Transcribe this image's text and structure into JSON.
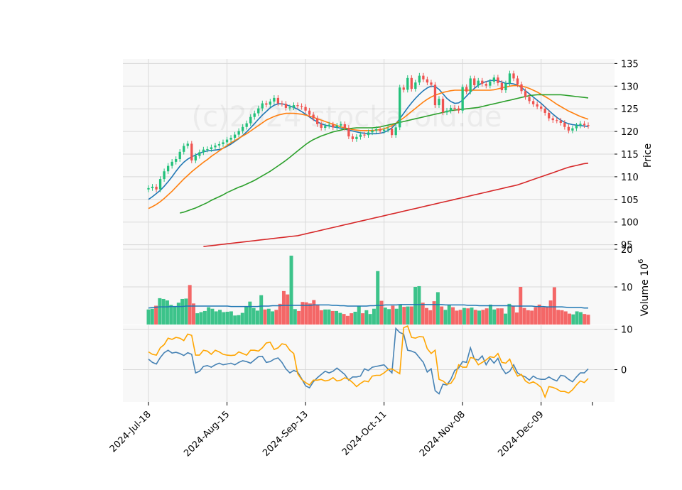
{
  "watermark": "(c)2024 stockaroid.de",
  "colors": {
    "up": "#26a69a",
    "up_candle": "#22c07a",
    "down": "#ef5350",
    "ma1": "#1f77b4",
    "ma2": "#ff7f0e",
    "ma3": "#2ca02c",
    "ma4": "#d62728",
    "vol_avg": "#1f77b4",
    "osc1": "#4682b4",
    "osc2": "#ffa500",
    "panel_bg": "#f8f8f8",
    "grid": "#d9d9d9"
  },
  "chart_data": {
    "type": "candlestick",
    "x_tick_labels": [
      "2024-Jul-18",
      "2024-Aug-15",
      "2024-Sep-13",
      "2024-Oct-11",
      "2024-Nov-08",
      "2024-Dec-09"
    ],
    "x_tick_index": [
      0,
      20,
      40,
      60,
      80,
      100
    ],
    "price_panel": {
      "ylabel": "Price",
      "yticks": [
        95,
        100,
        105,
        110,
        115,
        120,
        125,
        130,
        135
      ],
      "ylim": [
        94,
        136
      ],
      "close": [
        107.5,
        107.8,
        107.2,
        109.5,
        111.2,
        112.4,
        113.3,
        113.9,
        115.5,
        116.8,
        117.3,
        113.6,
        114.6,
        115.4,
        116.0,
        116.1,
        116.5,
        116.9,
        117.2,
        117.6,
        118.2,
        118.6,
        119.3,
        120.1,
        121.0,
        121.8,
        123.2,
        124.0,
        125.1,
        126.2,
        125.9,
        126.6,
        127.4,
        126.2,
        126.1,
        125.2,
        125.3,
        125.8,
        125.6,
        125.4,
        124.6,
        123.7,
        122.9,
        121.6,
        120.8,
        121.2,
        121.5,
        120.9,
        121.3,
        121.6,
        120.8,
        118.9,
        118.3,
        118.8,
        119.3,
        119.2,
        119.8,
        120.2,
        120.5,
        120.1,
        120.4,
        120.6,
        119.2,
        120.9,
        129.7,
        129.2,
        131.8,
        129.4,
        130.8,
        132.3,
        131.5,
        130.8,
        130.3,
        125.8,
        127.2,
        124.2,
        124.6,
        125.2,
        125.1,
        124.6,
        129.8,
        128.8,
        131.7,
        130.2,
        131.2,
        130.5,
        130.1,
        131.0,
        131.9,
        130.7,
        129.1,
        130.6,
        132.8,
        131.7,
        130.4,
        128.9,
        127.6,
        126.7,
        126.0,
        125.5,
        125.0,
        124.1,
        122.9,
        122.5,
        122.4,
        121.9,
        121.0,
        120.2,
        120.7,
        121.3,
        121.7,
        121.4,
        121.2
      ],
      "moving_averages": [
        {
          "name": "MA fast",
          "values": [
            105.0,
            105.6,
            106.3,
            107.0,
            107.9,
            108.9,
            110.0,
            111.2,
            112.3,
            113.2,
            113.9,
            114.4,
            114.8,
            115.2,
            115.5,
            115.7,
            115.8,
            115.9,
            116.0,
            116.3,
            116.7,
            117.2,
            117.8,
            118.4,
            119.1,
            119.9,
            120.8,
            121.7,
            122.7,
            123.6,
            124.4,
            125.2,
            125.8,
            126.1,
            126.1,
            125.9,
            125.6,
            125.3,
            124.9,
            124.4,
            123.8,
            123.2,
            122.6,
            122.1,
            121.7,
            121.4,
            121.2,
            121.0,
            120.9,
            120.7,
            120.5,
            120.3,
            120.1,
            119.9,
            119.7,
            119.6,
            119.5,
            119.5,
            119.5,
            119.6,
            119.8,
            120.2,
            120.8,
            121.7,
            122.8,
            124.0,
            125.2,
            126.3,
            127.3,
            128.2,
            129.0,
            129.6,
            130.0,
            129.9,
            129.3,
            128.3,
            127.3,
            126.6,
            126.2,
            126.3,
            126.9,
            127.8,
            128.7,
            129.5,
            130.2,
            130.7,
            131.0,
            131.2,
            131.3,
            131.2,
            130.9,
            130.6,
            130.6,
            130.5,
            130.2,
            129.7,
            129.0,
            128.3,
            127.6,
            126.9,
            126.2,
            125.4,
            124.6,
            123.8,
            123.1,
            122.5,
            122.0,
            121.7,
            121.5,
            121.4,
            121.3,
            121.2,
            121.1
          ]
        },
        {
          "name": "MA medium",
          "values": [
            103.0,
            103.4,
            103.9,
            104.5,
            105.2,
            106.0,
            106.8,
            107.7,
            108.6,
            109.5,
            110.3,
            111.1,
            111.8,
            112.5,
            113.2,
            113.8,
            114.5,
            115.1,
            115.7,
            116.3,
            116.9,
            117.5,
            118.0,
            118.5,
            119.0,
            119.5,
            120.1,
            120.7,
            121.3,
            121.9,
            122.5,
            122.9,
            123.3,
            123.6,
            123.8,
            124.0,
            124.0,
            124.0,
            123.9,
            123.8,
            123.6,
            123.4,
            123.1,
            122.8,
            122.5,
            122.2,
            121.9,
            121.6,
            121.3,
            121.0,
            120.8,
            120.6,
            120.4,
            120.3,
            120.2,
            120.2,
            120.2,
            120.2,
            120.3,
            120.4,
            120.6,
            120.9,
            121.3,
            121.8,
            122.4,
            123.0,
            123.7,
            124.4,
            125.1,
            125.8,
            126.5,
            127.1,
            127.6,
            128.0,
            128.3,
            128.6,
            128.8,
            129.0,
            129.1,
            129.1,
            129.1,
            129.1,
            129.1,
            129.1,
            129.1,
            129.1,
            129.1,
            129.1,
            129.2,
            129.4,
            129.6,
            129.8,
            130.0,
            130.1,
            130.1,
            130.0,
            129.8,
            129.5,
            129.1,
            128.7,
            128.2,
            127.7,
            127.2,
            126.6,
            126.0,
            125.5,
            125.0,
            124.5,
            124.1,
            123.7,
            123.3,
            123.0,
            122.7
          ]
        },
        {
          "name": "MA slow",
          "values": [
            102.0,
            102.2,
            102.5,
            102.8,
            103.1,
            103.5,
            103.9,
            104.3,
            104.8,
            105.2,
            105.6,
            106.0,
            106.5,
            106.9,
            107.3,
            107.7,
            108.0,
            108.4,
            108.8,
            109.2,
            109.7,
            110.2,
            110.7,
            111.2,
            111.8,
            112.4,
            113.0,
            113.6,
            114.3,
            115.0,
            115.7,
            116.4,
            117.1,
            117.7,
            118.2,
            118.6,
            119.0,
            119.3,
            119.6,
            119.9,
            120.1,
            120.3,
            120.5,
            120.6,
            120.7,
            120.8,
            120.8,
            120.8,
            120.8,
            120.8,
            120.9,
            121.0,
            121.2,
            121.4,
            121.6,
            121.8,
            122.0,
            122.2,
            122.4,
            122.6,
            122.8,
            123.0,
            123.2,
            123.4,
            123.6,
            123.8,
            124.0,
            124.2,
            124.4,
            124.6,
            124.7,
            124.8,
            124.9,
            125.0,
            125.1,
            125.2,
            125.3,
            125.5,
            125.7,
            125.9,
            126.1,
            126.3,
            126.5,
            126.7,
            126.9,
            127.1,
            127.3,
            127.5,
            127.7,
            127.9,
            128.0,
            128.1,
            128.1,
            128.1,
            128.1,
            128.1,
            128.1,
            128.1,
            128.0,
            127.9,
            127.8,
            127.7,
            127.6,
            127.5,
            127.4
          ]
        },
        {
          "name": "MA long",
          "values": [
            94.6,
            94.7,
            94.8,
            94.9,
            95.0,
            95.1,
            95.2,
            95.3,
            95.4,
            95.5,
            95.6,
            95.7,
            95.8,
            95.9,
            96.0,
            96.1,
            96.2,
            96.3,
            96.4,
            96.5,
            96.6,
            96.7,
            96.8,
            96.9,
            97.0,
            97.2,
            97.4,
            97.6,
            97.8,
            98.0,
            98.2,
            98.4,
            98.6,
            98.8,
            99.0,
            99.2,
            99.4,
            99.6,
            99.8,
            100.0,
            100.2,
            100.4,
            100.6,
            100.8,
            101.0,
            101.2,
            101.4,
            101.6,
            101.8,
            102.0,
            102.2,
            102.4,
            102.6,
            102.8,
            103.0,
            103.2,
            103.4,
            103.6,
            103.8,
            104.0,
            104.2,
            104.4,
            104.6,
            104.8,
            105.0,
            105.2,
            105.4,
            105.6,
            105.8,
            106.0,
            106.2,
            106.4,
            106.6,
            106.8,
            107.0,
            107.2,
            107.4,
            107.6,
            107.8,
            108.0,
            108.2,
            108.5,
            108.8,
            109.1,
            109.4,
            109.7,
            110.0,
            110.3,
            110.6,
            110.9,
            111.2,
            111.5,
            111.8,
            112.1,
            112.3,
            112.5,
            112.7,
            112.9,
            113.0
          ]
        }
      ]
    },
    "volume_panel": {
      "ylabel": "Volume  10",
      "ylabel_exponent": "6",
      "yticks": [
        10,
        20
      ],
      "ylim": [
        0,
        20
      ],
      "values": [
        4.0,
        4.2,
        5.0,
        7.0,
        6.8,
        6.4,
        5.2,
        4.9,
        5.8,
        6.8,
        6.9,
        10.5,
        5.6,
        3.0,
        3.3,
        3.6,
        4.6,
        4.2,
        3.5,
        3.9,
        3.3,
        3.4,
        3.5,
        2.4,
        2.5,
        3.1,
        4.8,
        6.1,
        4.4,
        3.7,
        7.8,
        4.0,
        4.2,
        3.5,
        3.9,
        5.5,
        8.9,
        8.0,
        18.3,
        4.1,
        3.6,
        6.0,
        5.9,
        5.6,
        6.5,
        5.2,
        3.8,
        4.0,
        4.0,
        3.6,
        3.6,
        3.1,
        2.8,
        2.3,
        3.0,
        3.4,
        4.9,
        3.0,
        3.8,
        2.8,
        4.2,
        14.2,
        6.3,
        4.5,
        4.1,
        5.0,
        4.2,
        5.2,
        4.7,
        4.8,
        4.8,
        10.0,
        10.2,
        5.8,
        4.4,
        3.8,
        6.2,
        8.6,
        4.8,
        3.9,
        5.1,
        4.6,
        3.7,
        3.9,
        4.4,
        4.3,
        4.5,
        3.9,
        3.7,
        3.9,
        4.3,
        5.3,
        4.0,
        4.3,
        4.3,
        2.9,
        5.5,
        5.0,
        3.2,
        10.0,
        4.4,
        3.8,
        3.7,
        4.6,
        5.3,
        4.6,
        4.8,
        6.4,
        9.9,
        3.9,
        3.8,
        3.5,
        2.9,
        2.7,
        3.5,
        3.3,
        2.8,
        2.6
      ],
      "avg": [
        4.4,
        4.5,
        4.6,
        4.7,
        4.7,
        4.7,
        4.8,
        4.8,
        4.8,
        4.8,
        4.9,
        4.9,
        4.9,
        4.9,
        4.9,
        4.9,
        4.9,
        4.9,
        4.9,
        4.9,
        4.9,
        4.9,
        4.8,
        4.8,
        4.8,
        4.8,
        4.8,
        4.8,
        4.8,
        4.8,
        4.9,
        4.9,
        4.9,
        5.0,
        5.0,
        5.0,
        5.1,
        5.1,
        5.1,
        5.1,
        5.1,
        5.1,
        5.1,
        5.1,
        5.2,
        5.2,
        5.2,
        5.2,
        5.2,
        5.1,
        5.1,
        5.0,
        5.0,
        4.9,
        4.9,
        4.9,
        4.9,
        4.9,
        4.9,
        5.0,
        5.0,
        5.1,
        5.1,
        5.2,
        5.2,
        5.2,
        5.2,
        5.3,
        5.3,
        5.3,
        5.3,
        5.3,
        5.3,
        5.3,
        5.3,
        5.3,
        5.3,
        5.3,
        5.3,
        5.2,
        5.2,
        5.2,
        5.2,
        5.2,
        5.2,
        5.1,
        5.1,
        5.1,
        5.0,
        5.0,
        5.0,
        5.0,
        5.0,
        5.0,
        5.0,
        5.0,
        5.0,
        4.9,
        4.9,
        4.9,
        4.9,
        4.9,
        4.9,
        4.8,
        4.8,
        4.8,
        4.7,
        4.7,
        4.7,
        4.7,
        4.7,
        4.6,
        4.5,
        4.5,
        4.5,
        4.5,
        4.4,
        4.4
      ]
    },
    "oscillator_panel": {
      "yticks": [
        -10,
        0,
        10
      ],
      "yticks_shown": [
        0,
        10
      ],
      "ylim": [
        -8,
        11
      ],
      "series": [
        {
          "name": "line1",
          "values": [
            2.6,
            1.8,
            1.4,
            3.0,
            4.2,
            4.8,
            4.1,
            4.3,
            4.0,
            3.5,
            4.2,
            3.8,
            -0.8,
            -0.4,
            0.8,
            1.0,
            0.6,
            1.2,
            1.6,
            1.2,
            1.4,
            1.6,
            1.2,
            1.8,
            2.2,
            2.0,
            1.6,
            2.4,
            3.2,
            3.3,
            1.8,
            2.0,
            2.6,
            2.9,
            1.8,
            0.2,
            -0.8,
            -0.2,
            -0.6,
            -2.2,
            -4.0,
            -4.5,
            -3.0,
            -2.0,
            -1.2,
            -0.4,
            -0.8,
            -0.4,
            0.4,
            -0.4,
            -1.2,
            -2.6,
            -1.8,
            -1.8,
            -1.6,
            0.2,
            -0.2,
            0.6,
            0.8,
            1.0,
            1.2,
            0.2,
            -0.8,
            10.2,
            9.2,
            8.8,
            4.8,
            4.6,
            4.2,
            3.0,
            1.8,
            -0.6,
            0.2,
            -5.2,
            -6.0,
            -3.6,
            -3.8,
            -2.4,
            -0.2,
            0.4,
            2.0,
            1.8,
            5.4,
            2.6,
            2.4,
            3.4,
            1.2,
            2.8,
            1.6,
            2.8,
            0.4,
            -1.0,
            -0.4,
            1.2,
            -0.8,
            -1.4,
            -1.8,
            -2.6,
            -1.6,
            -2.2,
            -2.4,
            -2.4,
            -1.8,
            -2.4,
            -2.8,
            -1.4,
            -1.6,
            -2.4,
            -3.0,
            -1.8,
            -0.8,
            -0.8,
            0.2
          ]
        },
        {
          "name": "line2",
          "values": [
            4.4,
            3.8,
            3.6,
            5.4,
            6.2,
            7.8,
            7.5,
            8.0,
            7.8,
            7.2,
            8.8,
            8.5,
            3.6,
            3.6,
            4.8,
            4.6,
            3.8,
            4.8,
            4.4,
            3.8,
            3.6,
            3.5,
            3.6,
            4.4,
            4.0,
            3.6,
            4.8,
            4.8,
            4.6,
            5.4,
            6.6,
            6.8,
            5.0,
            5.4,
            6.4,
            6.2,
            4.8,
            4.0,
            -1.0,
            -2.4,
            -3.2,
            -3.8,
            -2.6,
            -2.6,
            -2.4,
            -2.8,
            -2.6,
            -2.0,
            -2.8,
            -2.6,
            -2.0,
            -2.4,
            -3.2,
            -4.2,
            -3.4,
            -2.8,
            -3.0,
            -1.6,
            -1.4,
            -1.4,
            -0.8,
            0.0,
            0.2,
            -0.4,
            -1.0,
            10.4,
            10.8,
            8.0,
            7.8,
            8.2,
            8.1,
            5.2,
            4.0,
            4.8,
            -2.4,
            -2.8,
            -3.6,
            -3.4,
            -2.0,
            1.2,
            0.6,
            0.6,
            3.0,
            2.8,
            1.2,
            1.8,
            2.4,
            3.2,
            3.0,
            4.0,
            1.8,
            1.6,
            2.6,
            0.2,
            -1.6,
            -1.2,
            -2.8,
            -3.4,
            -3.0,
            -3.6,
            -4.4,
            -6.8,
            -4.2,
            -4.4,
            -4.8,
            -5.4,
            -5.4,
            -5.8,
            -5.0,
            -3.8,
            -2.8,
            -3.2,
            -2.2
          ]
        }
      ]
    }
  }
}
